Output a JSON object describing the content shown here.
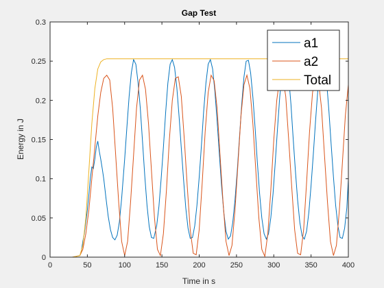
{
  "chart_data": {
    "type": "line",
    "title": "Gap Test",
    "xlabel": "Time in s",
    "ylabel": "Energy in J",
    "xlim": [
      0,
      400
    ],
    "ylim": [
      0,
      0.3
    ],
    "xticks": [
      "0",
      "50",
      "100",
      "150",
      "200",
      "250",
      "300",
      "350",
      "400"
    ],
    "yticks": [
      "0",
      "0.05",
      "0.1",
      "0.15",
      "0.2",
      "0.25",
      "0.3"
    ],
    "grid": false,
    "legend_position": "top-right",
    "series": [
      {
        "name": "a1",
        "color": "#0072bd",
        "x": [
          0,
          30,
          40,
          42,
          44,
          46,
          48,
          50,
          52,
          54,
          56,
          58,
          60,
          62,
          64,
          66,
          68,
          70,
          72,
          75,
          78,
          81,
          84,
          87,
          90,
          93,
          96,
          100,
          103,
          106,
          109,
          112,
          115,
          118,
          121,
          124,
          127,
          130,
          133,
          136,
          139,
          143,
          146,
          149,
          152,
          155,
          158,
          161,
          164,
          167,
          170,
          173,
          176,
          179,
          182,
          185,
          188,
          191,
          194,
          197,
          200,
          203,
          206,
          209,
          212,
          215,
          218,
          221,
          224,
          227,
          230,
          233,
          236,
          239,
          242,
          245,
          248,
          251,
          254,
          257,
          260,
          263,
          266,
          269,
          272,
          275,
          278,
          281,
          284,
          287,
          290,
          293,
          296,
          299,
          302,
          305,
          308,
          311,
          314,
          317,
          320,
          323,
          326,
          329,
          332,
          335,
          338,
          341,
          344,
          347,
          350,
          353,
          356,
          359,
          362,
          365,
          368,
          371,
          374,
          377,
          380,
          383,
          386,
          389,
          392,
          395,
          398,
          400
        ],
        "y": [
          0,
          0,
          0.002,
          0.008,
          0.02,
          0.03,
          0.045,
          0.06,
          0.08,
          0.1,
          0.115,
          0.113,
          0.125,
          0.14,
          0.148,
          0.135,
          0.125,
          0.113,
          0.1,
          0.075,
          0.052,
          0.035,
          0.025,
          0.022,
          0.028,
          0.045,
          0.075,
          0.125,
          0.165,
          0.205,
          0.235,
          0.252,
          0.246,
          0.223,
          0.19,
          0.148,
          0.104,
          0.066,
          0.039,
          0.025,
          0.024,
          0.04,
          0.065,
          0.1,
          0.14,
          0.185,
          0.222,
          0.246,
          0.252,
          0.242,
          0.216,
          0.18,
          0.139,
          0.099,
          0.063,
          0.037,
          0.024,
          0.025,
          0.04,
          0.066,
          0.102,
          0.143,
          0.186,
          0.222,
          0.246,
          0.252,
          0.24,
          0.212,
          0.174,
          0.131,
          0.091,
          0.057,
          0.033,
          0.023,
          0.027,
          0.044,
          0.073,
          0.11,
          0.152,
          0.195,
          0.23,
          0.25,
          0.251,
          0.235,
          0.204,
          0.164,
          0.121,
          0.081,
          0.05,
          0.03,
          0.023,
          0.03,
          0.05,
          0.081,
          0.121,
          0.164,
          0.204,
          0.235,
          0.251,
          0.25,
          0.23,
          0.195,
          0.152,
          0.11,
          0.073,
          0.044,
          0.027,
          0.023,
          0.033,
          0.057,
          0.091,
          0.131,
          0.174,
          0.212,
          0.24,
          0.252,
          0.246,
          0.222,
          0.186,
          0.143,
          0.102,
          0.066,
          0.04,
          0.025,
          0.024,
          0.037,
          0.063,
          0.099
        ]
      },
      {
        "name": "a2",
        "color": "#d95319",
        "x": [
          0,
          30,
          40,
          44,
          48,
          52,
          56,
          60,
          64,
          68,
          72,
          76,
          80,
          84,
          88,
          92,
          96,
          100,
          104,
          108,
          112,
          116,
          120,
          124,
          128,
          132,
          136,
          140,
          144,
          148,
          152,
          156,
          160,
          164,
          168,
          172,
          176,
          180,
          184,
          188,
          192,
          196,
          200,
          204,
          208,
          212,
          216,
          220,
          224,
          228,
          232,
          236,
          240,
          244,
          248,
          252,
          256,
          260,
          264,
          268,
          272,
          276,
          280,
          284,
          288,
          292,
          296,
          300,
          304,
          308,
          312,
          316,
          320,
          324,
          328,
          332,
          336,
          340,
          344,
          348,
          352,
          356,
          360,
          364,
          368,
          372,
          376,
          380,
          384,
          388,
          392,
          396,
          400
        ],
        "y": [
          0,
          0,
          0.002,
          0.01,
          0.03,
          0.06,
          0.1,
          0.14,
          0.18,
          0.21,
          0.228,
          0.232,
          0.226,
          0.19,
          0.13,
          0.07,
          0.02,
          0.002,
          0.02,
          0.07,
          0.13,
          0.19,
          0.226,
          0.232,
          0.214,
          0.17,
          0.11,
          0.05,
          0.01,
          0.002,
          0.03,
          0.085,
          0.15,
          0.2,
          0.228,
          0.23,
          0.205,
          0.15,
          0.09,
          0.035,
          0.005,
          0.003,
          0.035,
          0.095,
          0.16,
          0.21,
          0.232,
          0.225,
          0.19,
          0.13,
          0.07,
          0.02,
          0.002,
          0.015,
          0.06,
          0.12,
          0.18,
          0.22,
          0.232,
          0.215,
          0.17,
          0.11,
          0.05,
          0.01,
          0.001,
          0.03,
          0.085,
          0.15,
          0.2,
          0.228,
          0.23,
          0.205,
          0.15,
          0.09,
          0.035,
          0.005,
          0.003,
          0.035,
          0.095,
          0.16,
          0.21,
          0.232,
          0.225,
          0.19,
          0.13,
          0.07,
          0.02,
          0.002,
          0.015,
          0.06,
          0.12,
          0.18,
          0.22
        ]
      },
      {
        "name": "Total",
        "color": "#edb120",
        "x": [
          0,
          30,
          40,
          44,
          48,
          52,
          56,
          60,
          64,
          68,
          72,
          76,
          80,
          100,
          200,
          300,
          400
        ],
        "y": [
          0,
          0,
          0.002,
          0.015,
          0.05,
          0.11,
          0.17,
          0.215,
          0.24,
          0.249,
          0.252,
          0.253,
          0.253,
          0.253,
          0.253,
          0.253,
          0.253
        ]
      }
    ]
  }
}
